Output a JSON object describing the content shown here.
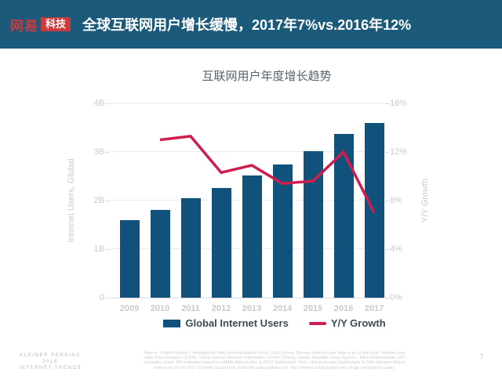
{
  "header": {
    "logo_brand": "网易",
    "logo_sub": "科技",
    "title": "全球互联网用户增长缓慢，2017年7%vs.2016年12%"
  },
  "chart_data": {
    "type": "bar",
    "title": "互联网用户年度增长趋势",
    "categories": [
      "2009",
      "2010",
      "2011",
      "2012",
      "2013",
      "2014",
      "2015",
      "2016",
      "2017"
    ],
    "series": [
      {
        "name": "Global Internet Users",
        "kind": "bar",
        "axis": "left",
        "unit": "billions",
        "values": [
          1.6,
          1.81,
          2.05,
          2.26,
          2.51,
          2.74,
          3.01,
          3.37,
          3.6
        ]
      },
      {
        "name": "Y/Y Growth",
        "kind": "line",
        "axis": "right",
        "unit": "%",
        "values": [
          null,
          13.0,
          13.3,
          10.3,
          10.9,
          9.4,
          9.6,
          12.0,
          7.0
        ]
      }
    ],
    "ylabel_left": "Internet Users, Global",
    "ylabel_right": "Y/Y Growth",
    "yticks_left": [
      "0",
      "1B",
      "2B",
      "3B",
      "4B"
    ],
    "yticks_right": [
      "0%",
      "4%",
      "8%",
      "12%",
      "16%"
    ],
    "ylim_left": [
      0,
      4
    ],
    "ylim_right": [
      0,
      16
    ],
    "grid": true,
    "legend_position": "bottom"
  },
  "legend": {
    "bar_label": "Global Internet Users",
    "line_label": "Y/Y Growth"
  },
  "footer": {
    "brand_lines": [
      "KLEINER PERKINS",
      "2018",
      "INTERNET TRENDS"
    ],
    "source_lines": [
      "Source: United Nations / International Telecommunications Union, USA Census Bureau. Internet user data is as of mid-year. Internet user",
      "data: Pew Research (USA), China Internet Network Information Center (China), Islamic Republic News Agency / InternetWorldStats / KP",
      "estimates (Iran), KP estimates based on IAMAI data (India), & APJII (Indonesia). Note: Historical data (particularly in Sub-Saharan Africa)",
      "revised by ITU in 2017 to better account for dual-SIM subscriptions (i.e. two Internet subscriptions per single smartphone user)."
    ],
    "page_number": "7"
  },
  "colors": {
    "header_bg": "#1b5a7b",
    "logo_red": "#cc3b3b",
    "bar": "#11527d",
    "line": "#cd1e4f",
    "grid": "#e9ebee",
    "axis_text": "#c6cacd",
    "chart_title": "#57646f",
    "legend_text": "#3d4a57"
  }
}
